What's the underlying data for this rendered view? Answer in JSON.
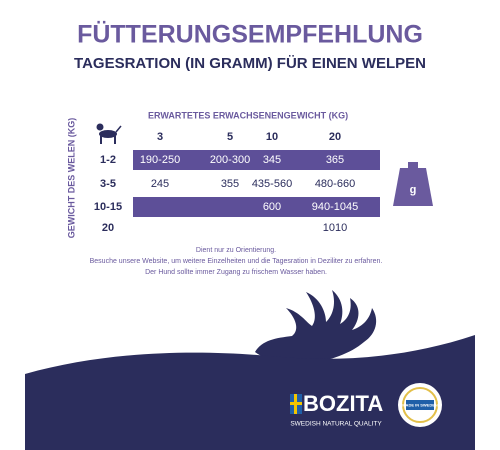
{
  "header": {
    "title": "FÜTTERUNGSEMPFEHLUNG",
    "subtitle": "TAGESRATION (IN GRAMM) FÜR EINEN WELPEN"
  },
  "table": {
    "column_title": "ERWARTETES ERWACHSENENGEWICHT (KG)",
    "row_title": "GEWICHT DES WELEN (KG)",
    "columns": [
      "3",
      "5",
      "10",
      "20"
    ],
    "rows": [
      {
        "label": "1-2",
        "cells": [
          "190-250",
          "200-300",
          "345",
          "365"
        ]
      },
      {
        "label": "3-5",
        "cells": [
          "245",
          "355",
          "435-560",
          "480-660"
        ]
      },
      {
        "label": "10-15",
        "cells": [
          null,
          null,
          "600",
          "940-1045"
        ]
      },
      {
        "label": "20",
        "cells": [
          null,
          null,
          null,
          "1010"
        ]
      }
    ],
    "unit_icon": "g"
  },
  "notes": [
    "Dient nur zu Orientierung.",
    "Besuche unsere Website, um weitere Einzelheiten und die Tagesration in Deziliter zu erfahren.",
    "Der Hund sollte immer Zugang zu frischem Wasser haben."
  ],
  "footer": {
    "brand": "BOZITA",
    "tagline": "SWEDISH NATURAL QUALITY",
    "badge": "MADE IN SWEDEN"
  }
}
